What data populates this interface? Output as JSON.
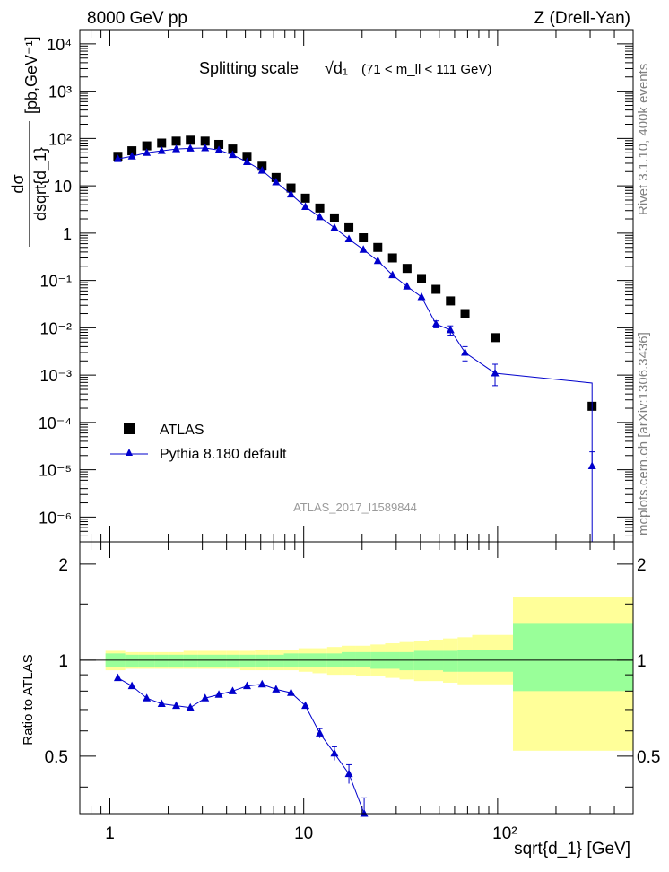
{
  "header": {
    "left": "8000 GeV pp",
    "right": "Z (Drell-Yan)"
  },
  "side_labels": {
    "rivet": "Rivet 3.1.10,  400k events",
    "mcplots": "mcplots.cern.ch [arXiv:1306.3436]"
  },
  "chart_data": [
    {
      "type": "scatter",
      "panel": "main",
      "title": "Splitting scale",
      "title_symbol": "√d₁",
      "title_cut": "(71 < m_ll < 111 GeV)",
      "analysis_label": "ATLAS_2017_I1589844",
      "xlabel": "sqrt{d_1} [GeV]",
      "ylabel": "dσ/dsqrt{d_1} [pb,GeV⁻¹]",
      "ylabel_numerator": "dσ",
      "ylabel_denominator": "dsqrt{d_1}",
      "ylabel_unit": "[pb,GeV⁻¹]",
      "xscale": "log",
      "yscale": "log",
      "xlim": [
        0.7,
        500
      ],
      "ylim": [
        3e-07,
        20000
      ],
      "x_tick_labels": [
        "1",
        "10",
        "10²"
      ],
      "y_tick_labels": [
        "10⁻⁶",
        "10⁻⁵",
        "10⁻⁴",
        "10⁻³",
        "10⁻²",
        "10⁻¹",
        "1",
        "10",
        "10²",
        "10³",
        "10⁴"
      ],
      "legend_position": "bottom-left",
      "series": [
        {
          "name": "ATLAS",
          "marker": "square",
          "color": "#000000",
          "x": [
            1.1,
            1.3,
            1.55,
            1.85,
            2.2,
            2.6,
            3.1,
            3.65,
            4.3,
            5.1,
            6.1,
            7.2,
            8.6,
            10.2,
            12.1,
            14.4,
            17.1,
            20.3,
            24.1,
            28.7,
            34.1,
            40.5,
            48.1,
            57.1,
            67.9,
            97.0,
            307.0
          ],
          "y": [
            42,
            55,
            70,
            80,
            88,
            92,
            88,
            75,
            60,
            42,
            26,
            15,
            9,
            5.5,
            3.4,
            2.1,
            1.3,
            0.8,
            0.5,
            0.3,
            0.18,
            0.11,
            0.065,
            0.037,
            0.02,
            0.0062,
            0.00022
          ]
        },
        {
          "name": "Pythia 8.180 default",
          "marker": "triangle",
          "color": "#0000cc",
          "x": [
            1.1,
            1.3,
            1.55,
            1.85,
            2.2,
            2.6,
            3.1,
            3.65,
            4.3,
            5.1,
            6.1,
            7.2,
            8.6,
            10.2,
            12.1,
            14.4,
            17.1,
            20.3,
            24.1,
            28.7,
            34.1,
            40.5,
            48.1,
            57.1,
            67.9,
            97.0,
            307.0
          ],
          "y": [
            37,
            42,
            50,
            55,
            60,
            62,
            63,
            57,
            45,
            32,
            21,
            12,
            6.6,
            3.6,
            2.2,
            1.3,
            0.75,
            0.45,
            0.26,
            0.13,
            0.075,
            0.045,
            0.012,
            0.009,
            0.003,
            0.0011,
            0.00068
          ],
          "yerr_low": [
            0,
            0,
            0,
            0,
            0,
            0,
            0,
            0,
            0,
            0,
            0,
            0,
            0,
            0,
            0,
            0,
            0,
            0,
            0,
            0,
            0,
            0,
            0.002,
            0.002,
            0.001,
            0.0005,
            0.00025
          ],
          "yerr_high": [
            0,
            0,
            0,
            0,
            0,
            0,
            0,
            0,
            0,
            0,
            0,
            0,
            0,
            0,
            0,
            0,
            0,
            0,
            0,
            0,
            0,
            0,
            0.002,
            0.002,
            0.001,
            0.0006,
            0.00025
          ],
          "extra_point": {
            "x": 307.0,
            "y": 1.2e-05,
            "yerr_low": 1.2e-05,
            "yerr_high": 1.2e-05
          }
        }
      ]
    },
    {
      "type": "line",
      "panel": "ratio",
      "ylabel": "Ratio to ATLAS",
      "xscale": "log",
      "xlim": [
        0.7,
        500
      ],
      "ylim": [
        0.33,
        2.35
      ],
      "y_tick_labels": [
        "0.5",
        "1",
        "2"
      ],
      "reference_line": 1.0,
      "bands": {
        "edges": [
          0.95,
          1.2,
          1.4,
          1.7,
          2.0,
          2.4,
          2.85,
          3.35,
          4.0,
          4.7,
          5.6,
          6.6,
          7.9,
          9.4,
          11.1,
          13.2,
          15.7,
          18.6,
          22.1,
          26.3,
          31.2,
          37.1,
          44.1,
          52.3,
          62.2,
          73.9,
          120.0,
          500
        ],
        "inner_low": [
          0.95,
          0.95,
          0.95,
          0.95,
          0.95,
          0.95,
          0.95,
          0.95,
          0.95,
          0.95,
          0.95,
          0.95,
          0.95,
          0.95,
          0.95,
          0.95,
          0.95,
          0.95,
          0.94,
          0.94,
          0.93,
          0.93,
          0.93,
          0.92,
          0.92,
          0.92,
          0.8
        ],
        "inner_high": [
          1.05,
          1.04,
          1.04,
          1.04,
          1.04,
          1.04,
          1.04,
          1.04,
          1.04,
          1.04,
          1.04,
          1.04,
          1.05,
          1.05,
          1.05,
          1.05,
          1.06,
          1.06,
          1.06,
          1.06,
          1.06,
          1.07,
          1.07,
          1.07,
          1.08,
          1.08,
          1.3
        ],
        "outer_low": [
          0.93,
          0.94,
          0.94,
          0.94,
          0.94,
          0.94,
          0.94,
          0.94,
          0.94,
          0.93,
          0.93,
          0.93,
          0.93,
          0.92,
          0.91,
          0.9,
          0.9,
          0.89,
          0.89,
          0.88,
          0.87,
          0.86,
          0.86,
          0.85,
          0.84,
          0.84,
          0.52
        ],
        "outer_high": [
          1.07,
          1.06,
          1.06,
          1.06,
          1.06,
          1.07,
          1.07,
          1.07,
          1.07,
          1.07,
          1.08,
          1.08,
          1.08,
          1.09,
          1.09,
          1.1,
          1.11,
          1.11,
          1.12,
          1.13,
          1.14,
          1.15,
          1.16,
          1.17,
          1.18,
          1.2,
          1.58
        ],
        "inner_color": "#99ff99",
        "outer_color": "#ffff99"
      },
      "series": [
        {
          "name": "Pythia 8.180 default / ATLAS",
          "color": "#0000cc",
          "x": [
            1.1,
            1.3,
            1.55,
            1.85,
            2.2,
            2.6,
            3.1,
            3.65,
            4.3,
            5.1,
            6.1,
            7.2,
            8.6,
            10.2,
            12.1,
            14.4,
            17.1,
            20.5
          ],
          "y": [
            0.88,
            0.83,
            0.76,
            0.73,
            0.72,
            0.71,
            0.76,
            0.78,
            0.8,
            0.83,
            0.84,
            0.81,
            0.79,
            0.72,
            0.59,
            0.51,
            0.44,
            0.33
          ],
          "yerr": [
            0.01,
            0.01,
            0.01,
            0.01,
            0.01,
            0.01,
            0.01,
            0.01,
            0.01,
            0.01,
            0.01,
            0.01,
            0.01,
            0.01,
            0.02,
            0.025,
            0.03,
            0.04
          ]
        }
      ]
    }
  ]
}
